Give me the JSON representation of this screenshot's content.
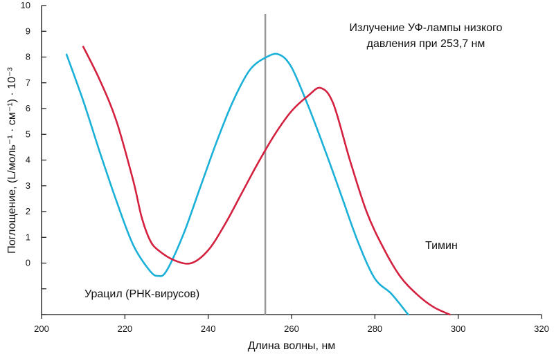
{
  "chart_data": {
    "type": "line",
    "title": "",
    "xlabel": "Длина волны, нм",
    "ylabel": "Поглощение, (L/моль⁻¹ · см⁻¹) · 10⁻³",
    "xlim": [
      200,
      320
    ],
    "xticks": [
      200,
      220,
      240,
      260,
      280,
      300,
      320
    ],
    "ylim": [
      -2,
      10
    ],
    "yticks": [
      0,
      1,
      2,
      3,
      4,
      5,
      6,
      7,
      8,
      9,
      10
    ],
    "grid": false,
    "reference_line": {
      "x": 253.7,
      "color": "#999999"
    },
    "annotations": {
      "lamp_line1": "Излучение УФ-лампы низкого",
      "lamp_line2": "давления при 253,7 нм",
      "uracil": "Урацил (РНК-вирусов)",
      "thymine": "Тимин"
    },
    "series": [
      {
        "name": "Урацил (РНК-вирусов)",
        "color": "#1ab0d8",
        "x": [
          206,
          210,
          214,
          218,
          222,
          226,
          228,
          230,
          234,
          238,
          242,
          246,
          250,
          254,
          257,
          260,
          264,
          268,
          272,
          276,
          280,
          284,
          288
        ],
        "y": [
          8.1,
          6.3,
          4.3,
          2.4,
          0.7,
          -0.3,
          -0.5,
          -0.3,
          1.1,
          2.9,
          4.7,
          6.3,
          7.5,
          8.0,
          8.1,
          7.6,
          6.1,
          4.4,
          2.6,
          0.8,
          -0.6,
          -1.2,
          -2.0
        ]
      },
      {
        "name": "Тимин",
        "color": "#d4213f",
        "x": [
          210,
          214,
          218,
          222,
          224,
          226,
          228,
          232,
          236,
          240,
          244,
          248,
          252,
          256,
          260,
          264,
          267,
          270,
          274,
          278,
          282,
          286,
          290,
          294,
          298
        ],
        "y": [
          8.4,
          7.1,
          5.5,
          3.2,
          1.8,
          0.9,
          0.5,
          0.1,
          0.0,
          0.5,
          1.5,
          2.7,
          3.9,
          5.0,
          5.9,
          6.5,
          6.8,
          6.2,
          4.0,
          2.0,
          0.6,
          -0.5,
          -1.2,
          -1.7,
          -2.0
        ]
      }
    ]
  }
}
